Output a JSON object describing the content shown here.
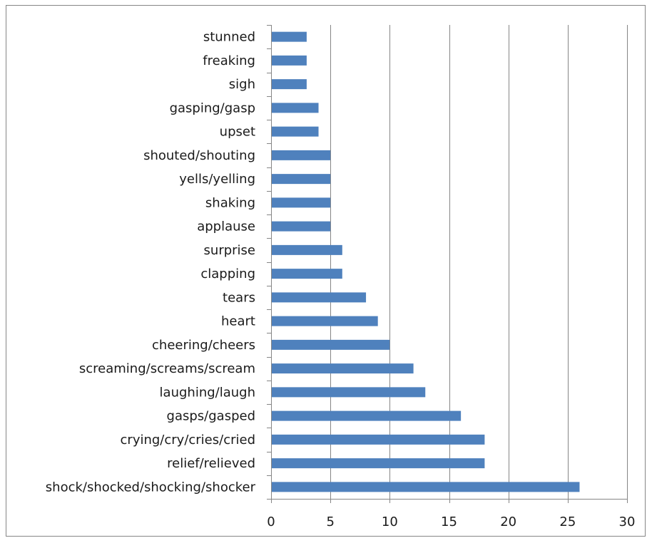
{
  "chart_data": {
    "type": "bar",
    "orientation": "horizontal",
    "title": "",
    "xlabel": "",
    "ylabel": "",
    "categories": [
      "shock/shocked/shocking/shocker",
      "relief/relieved",
      "crying/cry/cries/cried",
      "gasps/gasped",
      "laughing/laugh",
      "screaming/screams/scream",
      "cheering/cheers",
      "heart",
      "tears",
      "clapping",
      "surprise",
      "applause",
      "shaking",
      "yells/yelling",
      "shouted/shouting",
      "upset",
      "gasping/gasp",
      "sigh",
      "freaking",
      "stunned"
    ],
    "values": [
      26,
      18,
      18,
      16,
      13,
      12,
      10,
      9,
      8,
      6,
      6,
      5,
      5,
      5,
      5,
      4,
      4,
      3,
      3,
      3
    ],
    "xlim": [
      0,
      30
    ],
    "xticks": [
      "0",
      "5",
      "10",
      "15",
      "20",
      "25",
      "30"
    ],
    "grid": "vertical-major",
    "legend": "none",
    "colors": {
      "bar": "#4f81bd",
      "grid": "#868686",
      "axis": "#868686",
      "frame": "#868686"
    }
  }
}
